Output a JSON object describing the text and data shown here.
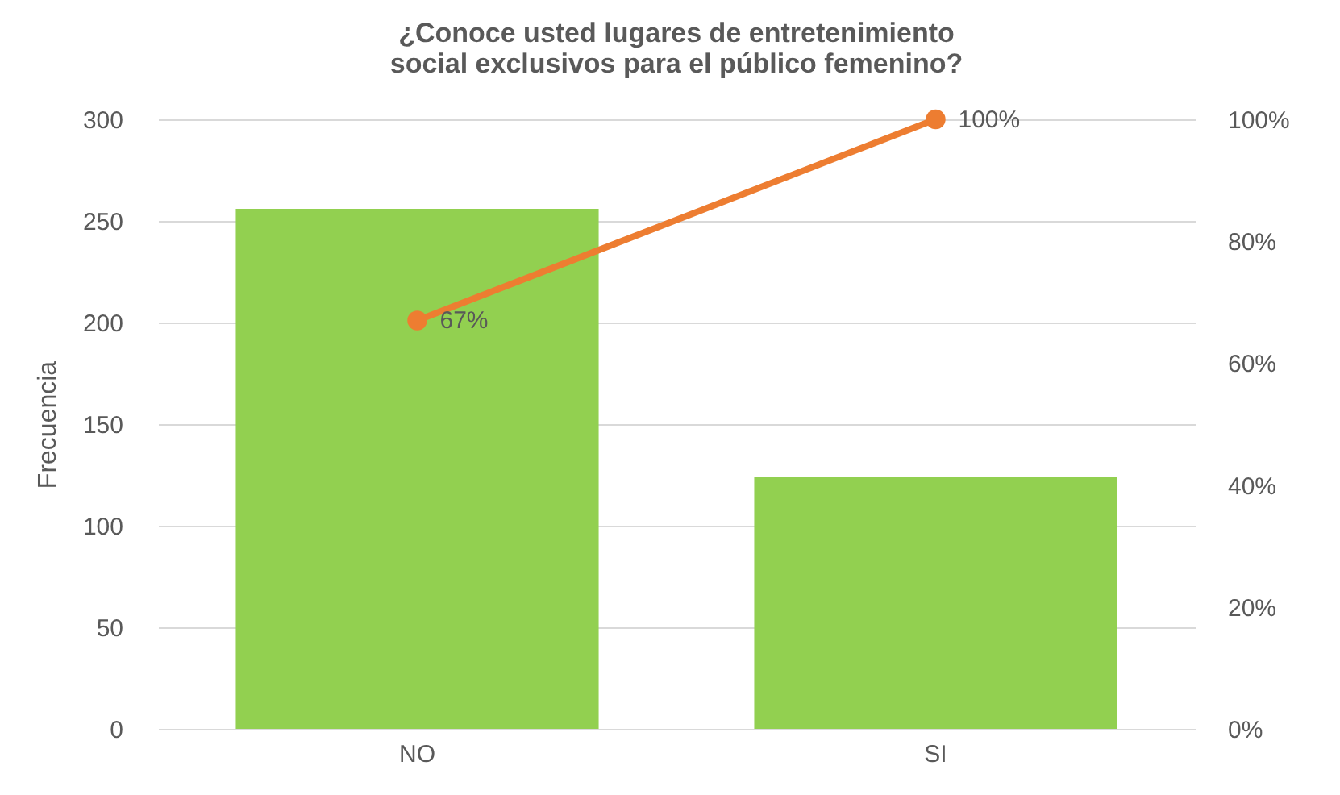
{
  "chart_data": {
    "type": "bar",
    "title": "¿Conoce usted lugares de entretenimiento social exclusivos para el público femenino?",
    "ylabel": "Frecuencia",
    "categories": [
      "NO",
      "SI"
    ],
    "series": [
      {
        "color": "#92d050",
        "values": [
          256,
          124
        ]
      },
      {
        "type": "line",
        "axis": "y2",
        "color": "#ed7d31",
        "values": [
          67,
          100
        ],
        "value_labels": [
          "67%",
          "100%"
        ]
      }
    ],
    "ylim": [
      0,
      300
    ],
    "yticks": [
      0,
      50,
      100,
      150,
      200,
      250,
      300
    ],
    "y2lim": [
      0,
      100
    ],
    "y2ticks": [
      {
        "value": 0,
        "label": "0%"
      },
      {
        "value": 20,
        "label": "20%"
      },
      {
        "value": 40,
        "label": "40%"
      },
      {
        "value": 60,
        "label": "60%"
      },
      {
        "value": 80,
        "label": "80%"
      },
      {
        "value": 100,
        "label": "100%"
      }
    ],
    "grid": "y",
    "marker": "circle",
    "line_style": "solid"
  }
}
